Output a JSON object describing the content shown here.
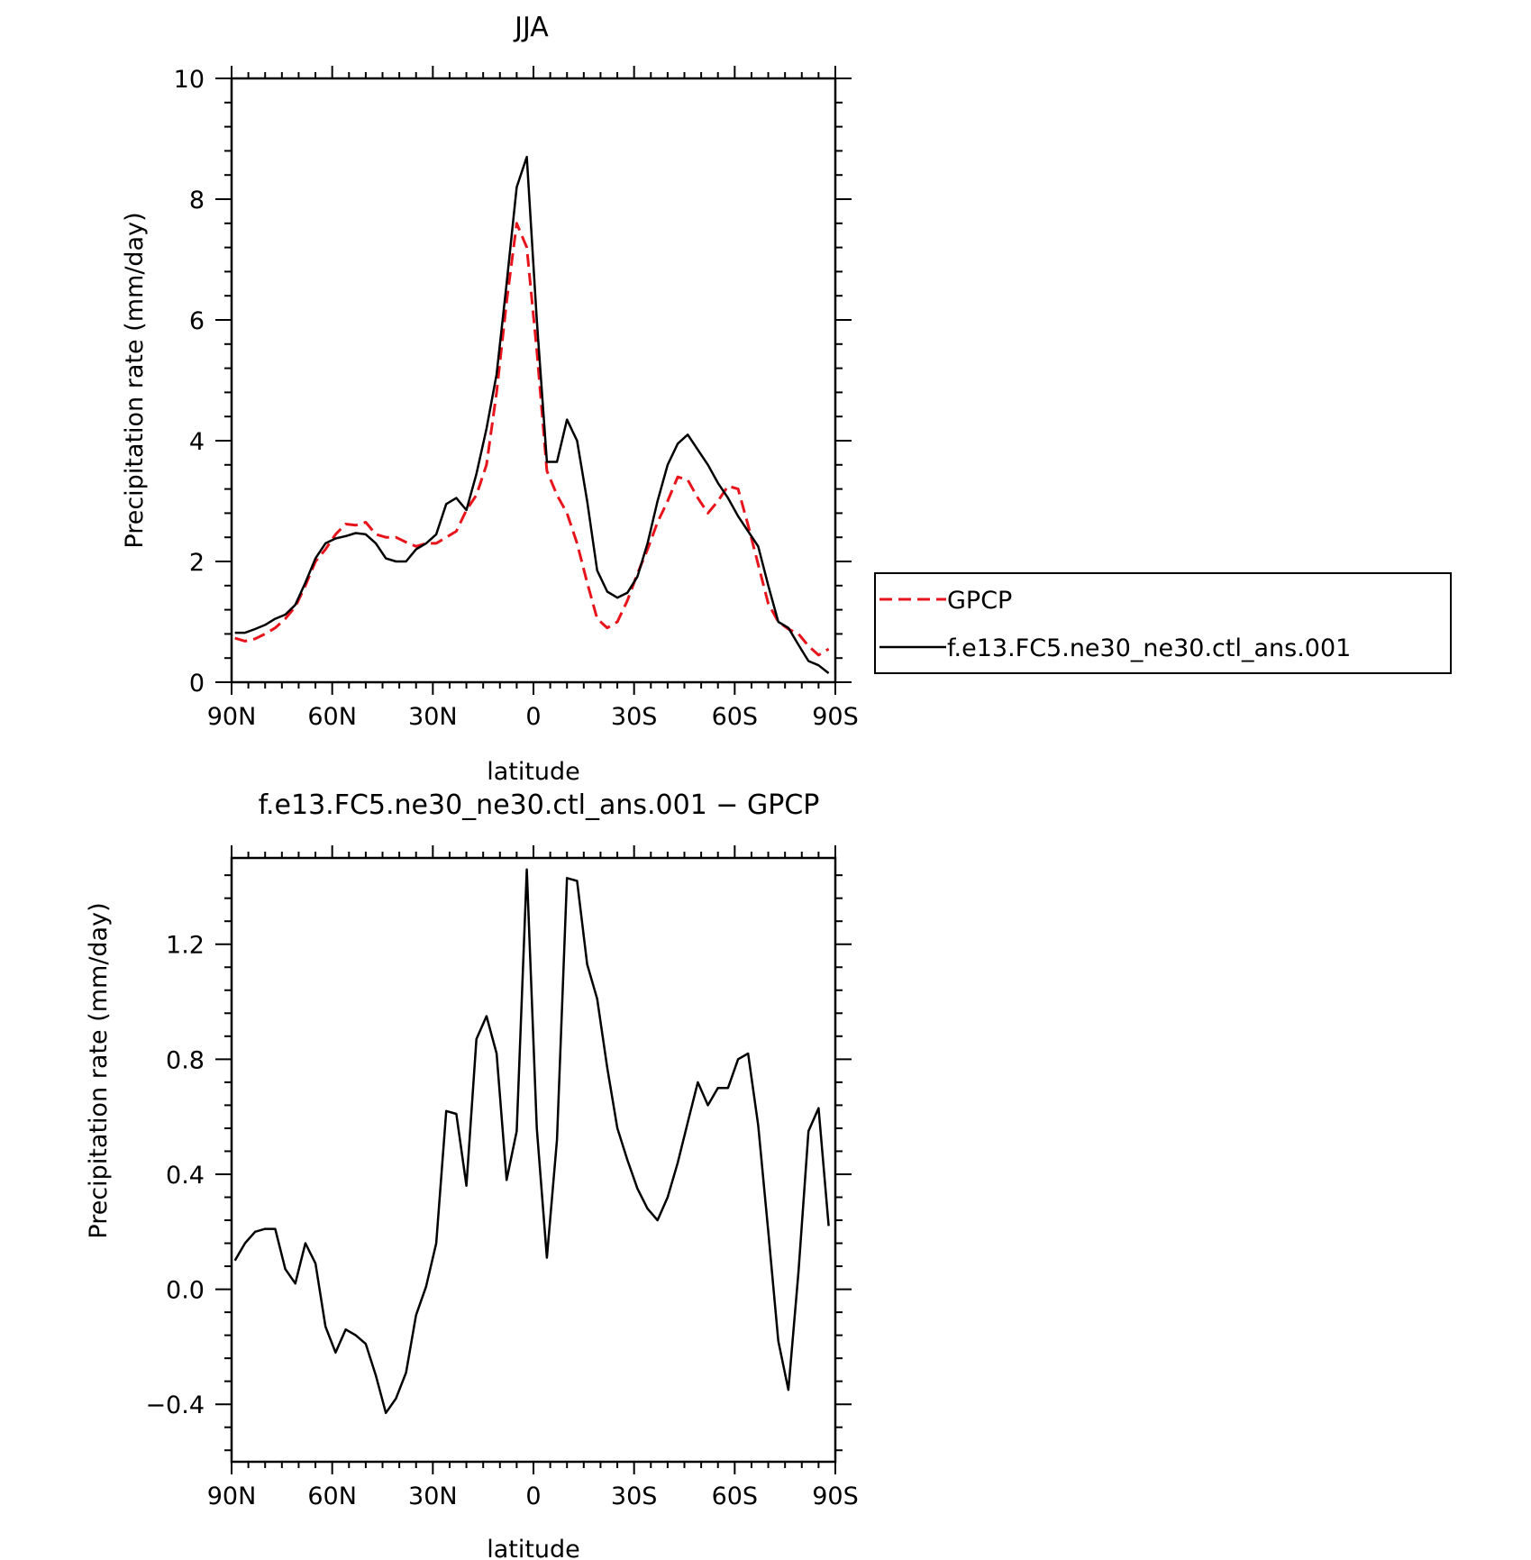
{
  "chart_data": [
    {
      "type": "line",
      "title": "JJA",
      "xlabel": "latitude",
      "ylabel": "Precipitation rate (mm/day)",
      "xlim": [
        90,
        -90
      ],
      "ylim": [
        0,
        10
      ],
      "x_tick_labels": [
        "90N",
        "60N",
        "30N",
        "0",
        "30S",
        "60S",
        "90S"
      ],
      "y_tick_labels": [
        "0",
        "2",
        "4",
        "6",
        "8",
        "10"
      ],
      "legend": "right",
      "series": [
        {
          "name": "GPCP",
          "color": "#e8141b",
          "style": "dashed",
          "x": [
            89,
            86,
            83,
            80,
            77,
            74,
            71,
            68,
            65,
            62,
            59,
            56,
            53,
            50,
            47,
            44,
            41,
            38,
            35,
            32,
            29,
            26,
            23,
            20,
            17,
            14,
            11,
            8,
            5,
            2,
            -1,
            -4,
            -7,
            -10,
            -13,
            -16,
            -19,
            -22,
            -25,
            -28,
            -31,
            -34,
            -37,
            -40,
            -43,
            -46,
            -49,
            -52,
            -55,
            -58,
            -61,
            -64,
            -67,
            -70,
            -73,
            -76,
            -79,
            -82,
            -85,
            -88
          ],
          "y": [
            0.73,
            0.68,
            0.72,
            0.8,
            0.9,
            1.05,
            1.25,
            1.6,
            2.0,
            2.2,
            2.45,
            2.62,
            2.6,
            2.65,
            2.45,
            2.4,
            2.4,
            2.32,
            2.25,
            2.3,
            2.3,
            2.4,
            2.5,
            2.85,
            3.1,
            3.6,
            4.8,
            6.3,
            7.6,
            7.2,
            5.5,
            3.5,
            3.1,
            2.8,
            2.3,
            1.65,
            1.05,
            0.9,
            1.0,
            1.35,
            1.8,
            2.2,
            2.65,
            3.0,
            3.4,
            3.35,
            3.05,
            2.8,
            3.0,
            3.25,
            3.2,
            2.6,
            1.95,
            1.3,
            1.0,
            0.88,
            0.8,
            0.6,
            0.45,
            0.55
          ]
        },
        {
          "name": "f.e13.FC5.ne30_ne30.ctl_ans.001",
          "color": "#000000",
          "style": "solid",
          "x": [
            89,
            86,
            83,
            80,
            77,
            74,
            71,
            68,
            65,
            62,
            59,
            56,
            53,
            50,
            47,
            44,
            41,
            38,
            35,
            32,
            29,
            26,
            23,
            20,
            17,
            14,
            11,
            8,
            5,
            2,
            -1,
            -4,
            -7,
            -10,
            -13,
            -16,
            -19,
            -22,
            -25,
            -28,
            -31,
            -34,
            -37,
            -40,
            -43,
            -46,
            -49,
            -52,
            -55,
            -58,
            -61,
            -64,
            -67,
            -70,
            -73,
            -76,
            -79,
            -82,
            -85,
            -88
          ],
          "y": [
            0.82,
            0.82,
            0.88,
            0.95,
            1.05,
            1.12,
            1.28,
            1.65,
            2.05,
            2.3,
            2.38,
            2.42,
            2.47,
            2.45,
            2.3,
            2.05,
            2.0,
            2.0,
            2.2,
            2.3,
            2.45,
            2.95,
            3.05,
            2.85,
            3.45,
            4.2,
            5.1,
            6.6,
            8.2,
            8.7,
            6.0,
            3.65,
            3.65,
            4.35,
            4.0,
            3.0,
            1.85,
            1.5,
            1.4,
            1.48,
            1.75,
            2.3,
            3.0,
            3.6,
            3.95,
            4.1,
            3.85,
            3.6,
            3.3,
            3.05,
            2.75,
            2.5,
            2.25,
            1.6,
            1.0,
            0.9,
            0.62,
            0.35,
            0.28,
            0.15
          ]
        }
      ]
    },
    {
      "type": "line",
      "title": "f.e13.FC5.ne30_ne30.ctl_ans.001 − GPCP",
      "xlabel": "latitude",
      "ylabel": "Precipitation rate (mm/day)",
      "xlim": [
        90,
        -90
      ],
      "ylim": [
        -0.6,
        1.5
      ],
      "x_tick_labels": [
        "90N",
        "60N",
        "30N",
        "0",
        "30S",
        "60S",
        "90S"
      ],
      "y_tick_labels": [
        "−0.4",
        "0.0",
        "0.4",
        "0.8",
        "1.2"
      ],
      "series": [
        {
          "color": "#000000",
          "style": "solid",
          "x": [
            89,
            86,
            83,
            80,
            77,
            74,
            71,
            68,
            65,
            62,
            59,
            56,
            53,
            50,
            47,
            44,
            41,
            38,
            35,
            32,
            29,
            26,
            23,
            20,
            17,
            14,
            11,
            8,
            5,
            2,
            -1,
            -4,
            -7,
            -10,
            -13,
            -16,
            -19,
            -22,
            -25,
            -28,
            -31,
            -34,
            -37,
            -40,
            -43,
            -46,
            -49,
            -52,
            -55,
            -58,
            -61,
            -64,
            -67,
            -70,
            -73,
            -76,
            -79,
            -82,
            -85,
            -88
          ],
          "y": [
            0.1,
            0.16,
            0.2,
            0.21,
            0.21,
            0.07,
            0.02,
            0.16,
            0.09,
            -0.13,
            -0.22,
            -0.14,
            -0.16,
            -0.19,
            -0.3,
            -0.43,
            -0.38,
            -0.29,
            -0.09,
            0.01,
            0.16,
            0.62,
            0.61,
            0.36,
            0.87,
            0.95,
            0.82,
            0.38,
            0.55,
            1.46,
            0.56,
            0.11,
            0.52,
            1.43,
            1.42,
            1.13,
            1.01,
            0.77,
            0.56,
            0.45,
            0.35,
            0.28,
            0.24,
            0.32,
            0.44,
            0.58,
            0.72,
            0.64,
            0.7,
            0.7,
            0.8,
            0.82,
            0.57,
            0.2,
            -0.18,
            -0.35,
            0.06,
            0.55,
            0.63,
            0.22
          ]
        }
      ]
    }
  ]
}
